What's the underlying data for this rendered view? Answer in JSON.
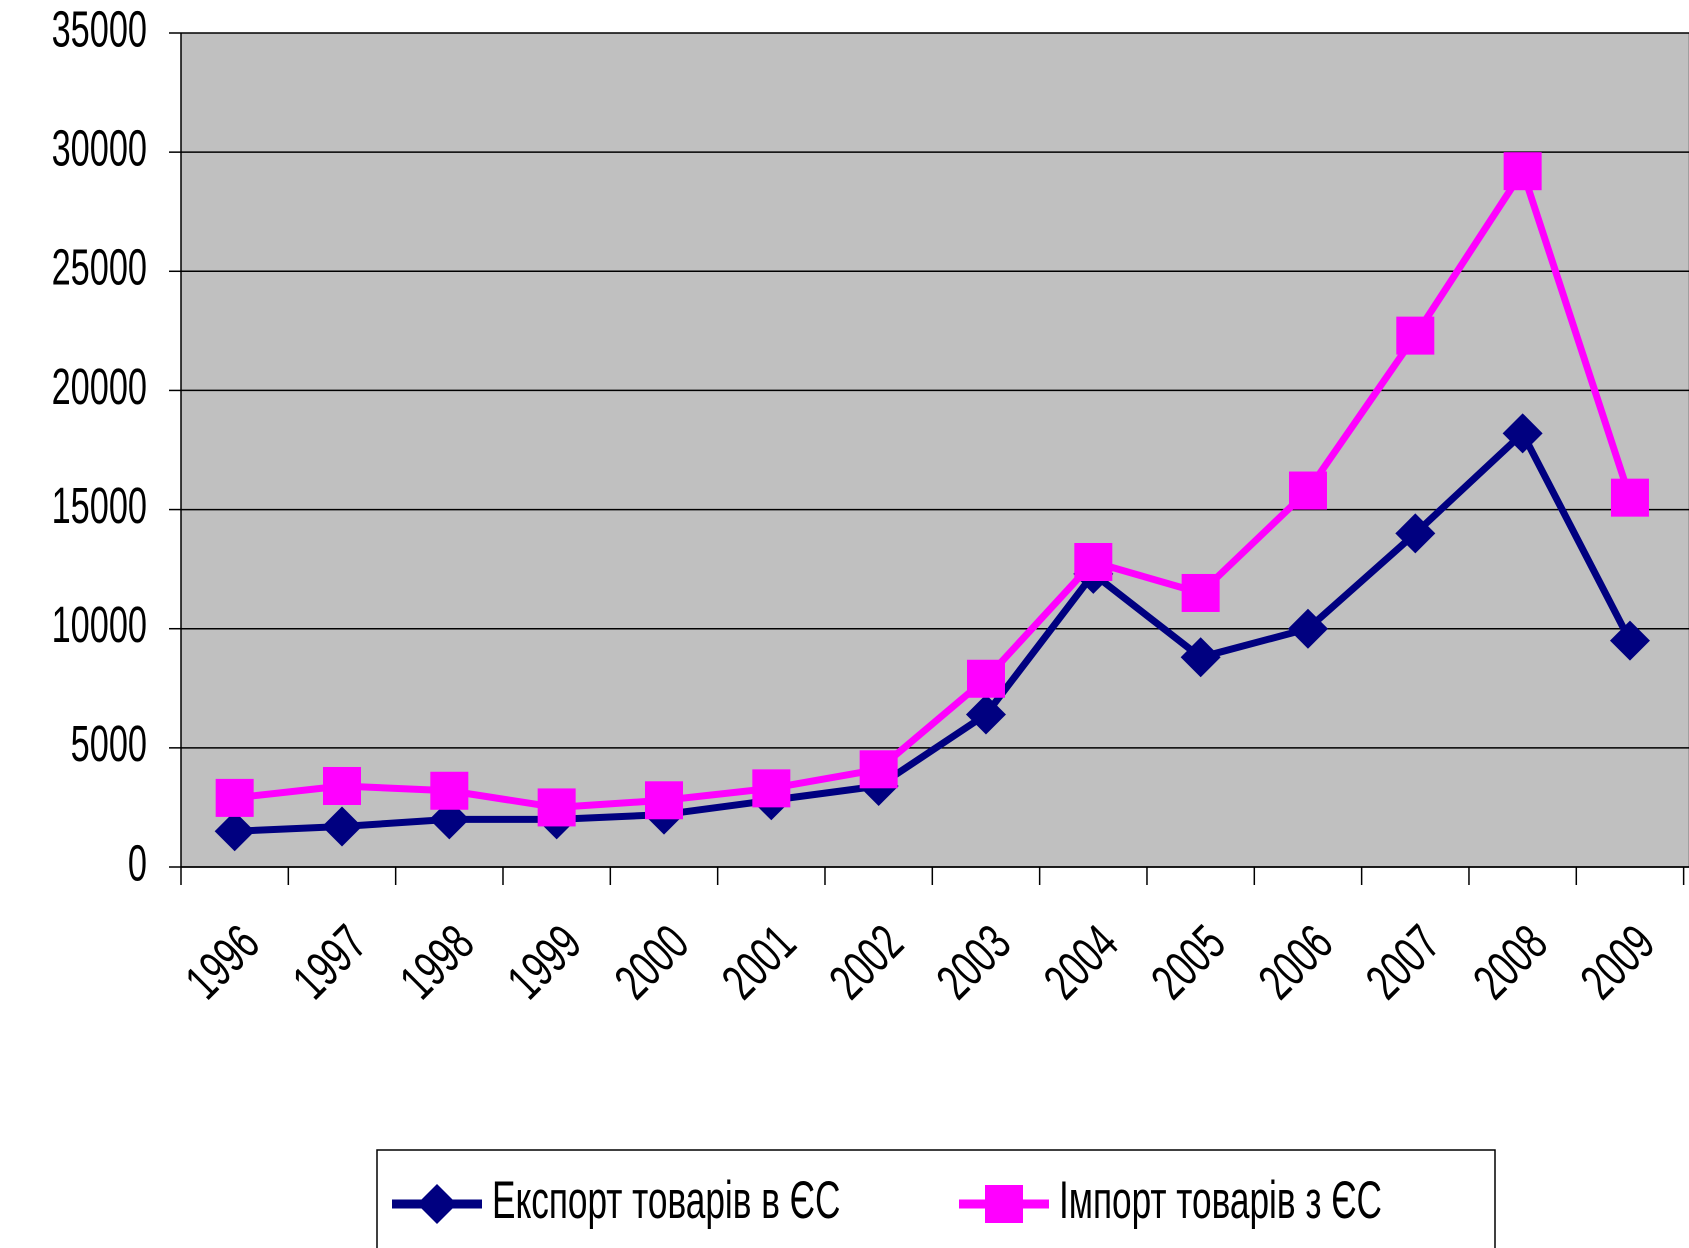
{
  "chart_data": {
    "type": "line",
    "categories": [
      "1996",
      "1997",
      "1998",
      "1999",
      "2000",
      "2001",
      "2002",
      "2003",
      "2004",
      "2005",
      "2006",
      "2007",
      "2008",
      "2009"
    ],
    "series": [
      {
        "name": "Експорт товарів в ЄС",
        "color": "#000080",
        "marker": "diamond",
        "values": [
          1500,
          1700,
          2000,
          2000,
          2200,
          2800,
          3400,
          6400,
          12300,
          8800,
          10000,
          14000,
          18200,
          9500
        ]
      },
      {
        "name": "Імпорт товарів з ЄС",
        "color": "#ff00ff",
        "marker": "square",
        "values": [
          2900,
          3400,
          3200,
          2500,
          2800,
          3300,
          4100,
          7900,
          12800,
          11500,
          15800,
          22300,
          29200,
          15500
        ]
      }
    ],
    "ylim": [
      0,
      35000
    ],
    "yticks": [
      0,
      5000,
      10000,
      15000,
      20000,
      25000,
      30000,
      35000
    ],
    "grid": true,
    "legend": "bottom"
  }
}
